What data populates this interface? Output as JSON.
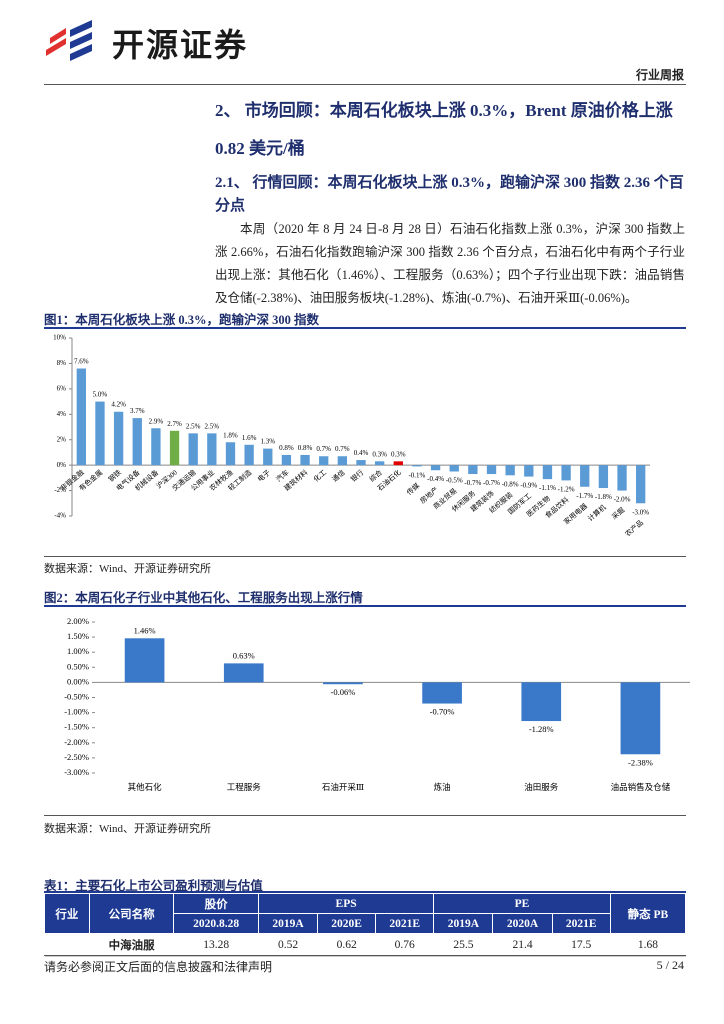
{
  "header": {
    "brand": "开源证券",
    "report_type": "行业周报"
  },
  "section": {
    "heading": "2、 市场回顾：本周石化板块上涨 0.3%，Brent 原油价格上涨 0.82 美元/桶",
    "subheading": "2.1、 行情回顾：本周石化板块上涨 0.3%，跑输沪深 300 指数 2.36 个百分点",
    "paragraph": "本周（2020 年 8 月 24 日-8 月 28 日）石油石化指数上涨 0.3%，沪深 300 指数上涨 2.66%，石油石化指数跑输沪深 300 指数 2.36 个百分点，石油石化中有两个子行业出现上涨：其他石化（1.46%）、工程服务（0.63%）；四个子行业出现下跌：油品销售及仓储(-2.38%)、油田服务板块(-1.28%)、炼油(-0.7%)、石油开采Ⅲ(-0.06%)。"
  },
  "figures": [
    {
      "caption": "图1：本周石化板块上涨 0.3%，跑输沪深 300 指数",
      "source": "数据来源：Wind、开源证券研究所"
    },
    {
      "caption": "图2：本周石化子行业中其他石化、工程服务出现上涨行情",
      "source": "数据来源：Wind、开源证券研究所"
    }
  ],
  "chart_data": [
    {
      "type": "bar",
      "categories": [
        "非银金融",
        "有色金属",
        "钢铁",
        "电气设备",
        "机械设备",
        "沪深300",
        "交通运输",
        "公用事业",
        "农林牧渔",
        "轻工制造",
        "电子",
        "汽车",
        "建筑材料",
        "化工",
        "通信",
        "银行",
        "综合",
        "石油石化",
        "传媒",
        "房地产",
        "商业贸易",
        "休闲服务",
        "建筑装饰",
        "纺织服装",
        "国防军工",
        "医药生物",
        "食品饮料",
        "家用电器",
        "计算机",
        "采掘",
        "农产品"
      ],
      "values": [
        7.6,
        5.0,
        4.2,
        3.7,
        2.9,
        2.7,
        2.5,
        2.5,
        1.8,
        1.6,
        1.3,
        0.8,
        0.8,
        0.7,
        0.7,
        0.4,
        0.3,
        0.3,
        -0.1,
        -0.4,
        -0.5,
        -0.7,
        -0.7,
        -0.8,
        -0.9,
        -1.1,
        -1.2,
        -1.7,
        -1.8,
        -2.0,
        -3.0
      ],
      "value_labels": [
        "7.6%",
        "5.0%",
        "4.2%",
        "3.7%",
        "2.9%",
        "2.7%",
        "2.5%",
        "2.5%",
        "1.8%",
        "1.6%",
        "1.3%",
        "0.8%",
        "0.8%",
        "0.7%",
        "0.7%",
        "0.4%",
        "0.3%",
        "0.3%",
        "-0.1%",
        "-0.4%",
        "-0.5%",
        "-0.7%",
        "-0.7%",
        "-0.8%",
        "-0.9%",
        "-1.1%",
        "-1.2%",
        "-1.7%",
        "-1.8%",
        "-2.0%",
        "-3.0%"
      ],
      "colors": [
        "#5b9bd5",
        "#5b9bd5",
        "#5b9bd5",
        "#5b9bd5",
        "#5b9bd5",
        "#70ad47",
        "#5b9bd5",
        "#5b9bd5",
        "#5b9bd5",
        "#5b9bd5",
        "#5b9bd5",
        "#5b9bd5",
        "#5b9bd5",
        "#5b9bd5",
        "#5b9bd5",
        "#5b9bd5",
        "#5b9bd5",
        "#e00000",
        "#5b9bd5",
        "#5b9bd5",
        "#5b9bd5",
        "#5b9bd5",
        "#5b9bd5",
        "#5b9bd5",
        "#5b9bd5",
        "#5b9bd5",
        "#5b9bd5",
        "#5b9bd5",
        "#5b9bd5",
        "#5b9bd5",
        "#5b9bd5"
      ],
      "ylim": [
        -4,
        10
      ],
      "yticks": [
        {
          "value": -4,
          "label": "-4%"
        },
        {
          "value": -2,
          "label": "-2%"
        },
        {
          "value": 0,
          "label": "0%"
        },
        {
          "value": 2,
          "label": "2%"
        },
        {
          "value": 4,
          "label": "4%"
        },
        {
          "value": 6,
          "label": "6%"
        },
        {
          "value": 8,
          "label": "8%"
        },
        {
          "value": 10,
          "label": "10%"
        }
      ],
      "grid": false
    },
    {
      "type": "bar",
      "categories": [
        "其他石化",
        "工程服务",
        "石油开采Ⅲ",
        "炼油",
        "油田服务",
        "油品销售及仓储"
      ],
      "values": [
        1.46,
        0.63,
        -0.06,
        -0.7,
        -1.28,
        -2.38
      ],
      "value_labels": [
        "1.46%",
        "0.63%",
        "-0.06%",
        "-0.70%",
        "-1.28%",
        "-2.38%"
      ],
      "color": "#3a78c9",
      "ylim": [
        -3,
        2
      ],
      "yticks": [
        {
          "value": -3,
          "label": "-3.00%"
        },
        {
          "value": -2.5,
          "label": "-2.50%"
        },
        {
          "value": -2,
          "label": "-2.00%"
        },
        {
          "value": -1.5,
          "label": "-1.50%"
        },
        {
          "value": -1,
          "label": "-1.00%"
        },
        {
          "value": -0.5,
          "label": "-0.50%"
        },
        {
          "value": 0,
          "label": "0.00%"
        },
        {
          "value": 0.5,
          "label": "0.50%"
        },
        {
          "value": 1,
          "label": "1.00%"
        },
        {
          "value": 1.5,
          "label": "1.50%"
        },
        {
          "value": 2,
          "label": "2.00%"
        }
      ],
      "grid": false
    }
  ],
  "table": {
    "caption": "表1：主要石化上市公司盈利预测与估值",
    "header": {
      "industry": "行业",
      "company": "公司名称",
      "price": "股价",
      "price_date": "2020.8.28",
      "eps": "EPS",
      "pe": "PE",
      "pb": "静态 PB",
      "eps_years": [
        "2019A",
        "2020E",
        "2021E"
      ],
      "pe_years": [
        "2019A",
        "2020A",
        "2021E"
      ]
    },
    "rows": [
      [
        "中海油服",
        13.28,
        0.52,
        0.62,
        0.76,
        25.5,
        21.4,
        17.5,
        1.68
      ]
    ]
  },
  "footer": {
    "disclaimer": "请务必参阅正文后面的信息披露和法律声明",
    "page": "5 / 24"
  }
}
